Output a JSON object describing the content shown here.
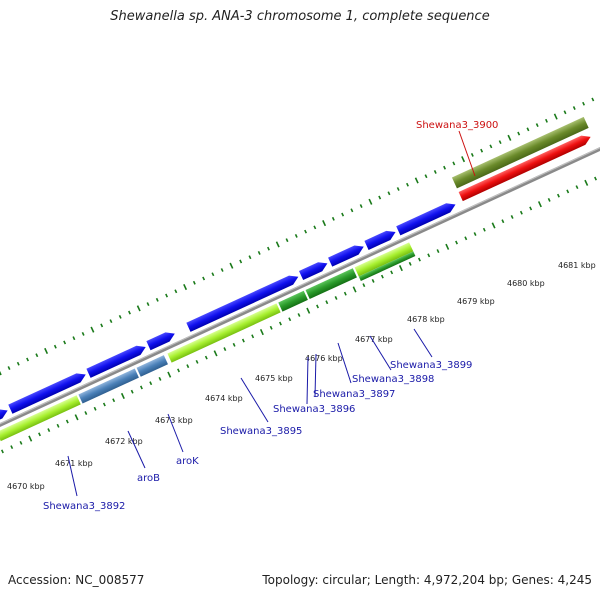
{
  "title": "Shewanella sp. ANA-3 chromosome 1, complete sequence",
  "footer": {
    "accession": "Accession: NC_008577",
    "summary": "Topology: circular; Length: 4,972,204 bp; Genes: 4,245"
  },
  "colors": {
    "backbone": "#8a8a8a",
    "tick": "#1a7a1a",
    "label_blue": "#1a1aa8",
    "label_red": "#cc1111"
  },
  "scale_labels": [
    "4670 kbp",
    "4671 kbp",
    "4672 kbp",
    "4673 kbp",
    "4674 kbp",
    "4675 kbp",
    "4676 kbp",
    "4677 kbp",
    "4678 kbp",
    "4679 kbp",
    "4680 kbp",
    "4681 kbp"
  ],
  "gene_labels": [
    {
      "text": "Shewana3_3900",
      "color": "#cc1111"
    },
    {
      "text": "Shewana3_3899",
      "color": "#1a1aa8"
    },
    {
      "text": "Shewana3_3898",
      "color": "#1a1aa8"
    },
    {
      "text": "Shewana3_3897",
      "color": "#1a1aa8"
    },
    {
      "text": "Shewana3_3896",
      "color": "#1a1aa8"
    },
    {
      "text": "Shewana3_3895",
      "color": "#1a1aa8"
    },
    {
      "text": "aroK",
      "color": "#1a1aa8"
    },
    {
      "text": "aroB",
      "color": "#1a1aa8"
    },
    {
      "text": "Shewana3_3892",
      "color": "#1a1aa8"
    }
  ],
  "legend": []
}
